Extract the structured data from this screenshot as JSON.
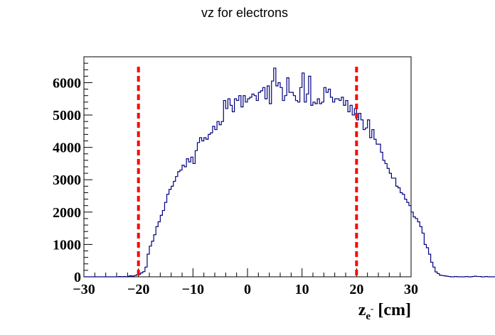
{
  "chart_data": {
    "type": "histogram",
    "title": "vz for electrons",
    "xlabel": "z",
    "xlabel_sub": "e",
    "xlabel_sup": "-",
    "xlabel_unit": "[cm]",
    "ylabel": "",
    "xlim": [
      -30,
      30
    ],
    "ylim": [
      0,
      6800
    ],
    "x_ticks": [
      -30,
      -20,
      -10,
      0,
      10,
      20,
      30
    ],
    "x_tick_labels": [
      "−30",
      "−20",
      "−10",
      "0",
      "10",
      "20",
      "30"
    ],
    "y_ticks": [
      0,
      1000,
      2000,
      3000,
      4000,
      5000,
      6000
    ],
    "y_tick_labels": [
      "0",
      "1000",
      "2000",
      "3000",
      "4000",
      "5000",
      "6000"
    ],
    "grid": false,
    "bin_start": -30,
    "bin_width": 0.4,
    "series": [
      {
        "color": "#000080",
        "values": [
          0,
          0,
          0,
          0,
          0,
          0,
          0,
          0,
          0,
          0,
          0,
          0,
          0,
          0,
          0,
          0,
          10,
          0,
          10,
          0,
          20,
          30,
          20,
          40,
          60,
          80,
          120,
          160,
          300,
          700,
          950,
          1100,
          1300,
          1550,
          1700,
          1900,
          2050,
          2300,
          2550,
          2700,
          2800,
          2950,
          3100,
          3250,
          3300,
          3450,
          3400,
          3650,
          3550,
          3700,
          3500,
          3900,
          4150,
          4300,
          4200,
          4300,
          4250,
          4400,
          4450,
          4650,
          4550,
          4800,
          4700,
          4800,
          5450,
          5200,
          5500,
          5300,
          5100,
          5500,
          5450,
          5600,
          5250,
          5600,
          5400,
          5500,
          5550,
          5650,
          5600,
          5450,
          5700,
          5750,
          5850,
          5500,
          5900,
          5350,
          6050,
          6450,
          5900,
          6000,
          5850,
          5450,
          5600,
          6150,
          5700,
          5700,
          5600,
          5450,
          5400,
          5850,
          6300,
          5400,
          5650,
          6200,
          5300,
          5400,
          5350,
          5500,
          5350,
          5400,
          5850,
          5700,
          5800,
          5550,
          5400,
          5500,
          5500,
          5450,
          5550,
          5300,
          5450,
          5100,
          5300,
          5000,
          5200,
          4850,
          5050,
          4850,
          4550,
          4600,
          4850,
          4300,
          4550,
          4250,
          4100,
          4100,
          3850,
          3600,
          3500,
          3350,
          3200,
          3050,
          3050,
          2800,
          2750,
          2600,
          2550,
          2400,
          2300,
          2200,
          2000,
          1850,
          1800,
          1700,
          1550,
          1350,
          1000,
          900,
          700,
          450,
          300,
          150,
          100,
          50,
          40,
          30,
          20,
          10,
          0,
          0,
          10,
          0,
          0,
          0,
          0,
          10,
          0,
          0,
          10,
          20,
          10,
          10,
          0,
          0,
          10,
          0,
          0,
          0,
          0,
          10,
          0,
          0,
          0,
          0,
          0,
          0
        ]
      }
    ],
    "cut_lines": {
      "x": [
        -20,
        20
      ],
      "color": "#ff0000",
      "style": "dashed"
    }
  }
}
